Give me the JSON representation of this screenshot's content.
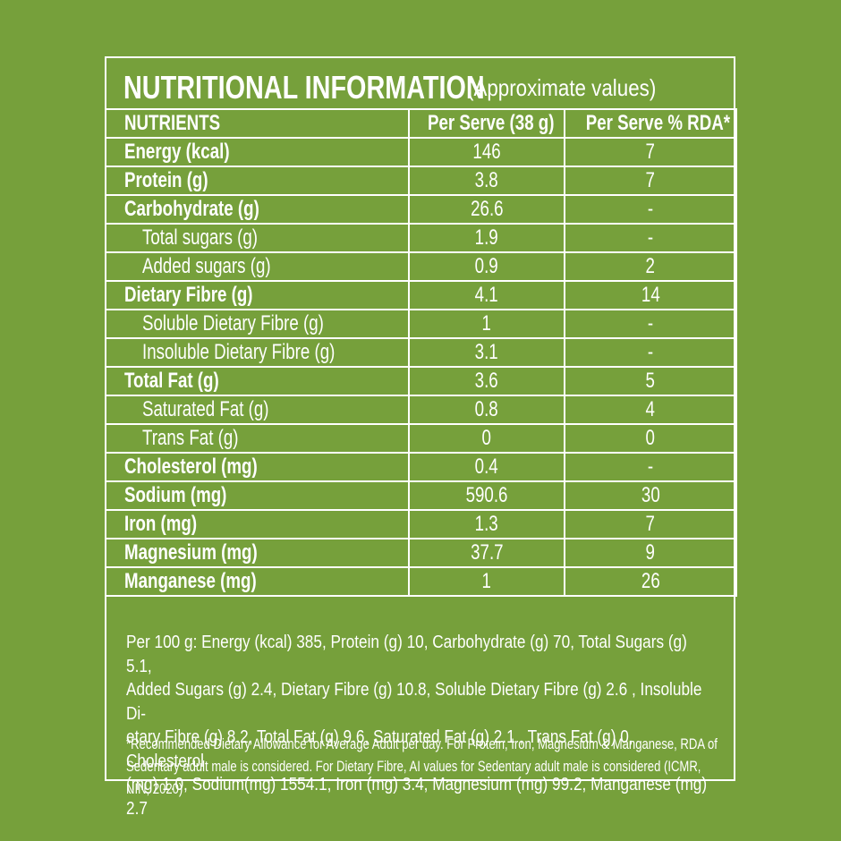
{
  "label": {
    "title": "NUTRITIONAL INFORMATION",
    "subtitle": "(Approximate values)",
    "columns": [
      "NUTRIENTS",
      "Per Serve (38 g)",
      "Per Serve % RDA*"
    ],
    "rows": [
      {
        "name": "Energy (kcal)",
        "per_serve": "146",
        "rda": "7"
      },
      {
        "name": "Protein (g)",
        "per_serve": "3.8",
        "rda": "7"
      },
      {
        "name": "Carbohydrate (g)",
        "per_serve": "26.6",
        "rda": "-"
      },
      {
        "name": "Total sugars (g)",
        "per_serve": "1.9",
        "rda": "-"
      },
      {
        "name": "Added sugars (g)",
        "per_serve": "0.9",
        "rda": "2"
      },
      {
        "name": "Dietary Fibre (g)",
        "per_serve": "4.1",
        "rda": "14"
      },
      {
        "name": "Soluble Dietary Fibre (g)",
        "per_serve": "1",
        "rda": "-"
      },
      {
        "name": "Insoluble Dietary Fibre (g)",
        "per_serve": "3.1",
        "rda": "-"
      },
      {
        "name": "Total Fat (g)",
        "per_serve": "3.6",
        "rda": "5"
      },
      {
        "name": "Saturated Fat (g)",
        "per_serve": "0.8",
        "rda": "4"
      },
      {
        "name": "Trans Fat (g)",
        "per_serve": "0",
        "rda": "0"
      },
      {
        "name": "Cholesterol (mg)",
        "per_serve": "0.4",
        "rda": "-"
      },
      {
        "name": "Sodium (mg)",
        "per_serve": "590.6",
        "rda": "30"
      },
      {
        "name": "Iron (mg)",
        "per_serve": "1.3",
        "rda": "7"
      },
      {
        "name": "Magnesium (mg)",
        "per_serve": "37.7",
        "rda": "9"
      },
      {
        "name": "Manganese (mg)",
        "per_serve": "1",
        "rda": "26"
      }
    ],
    "per_100g": [
      "Per 100 g: Energy (kcal) 385, Protein (g) 10, Carbohydrate (g) 70, Total Sugars (g) 5.1,",
      "Added Sugars (g) 2.4, Dietary Fibre (g) 10.8, Soluble Dietary Fibre (g) 2.6 , Insoluble Di-",
      "etary Fibre (g) 8.2, Total Fat (g) 9.6, Saturated Fat (g) 2.1 , Trans Fat (g) 0, Cholesterol",
      "(mg) 1.0, Sodium(mg) 1554.1, Iron (mg) 3.4, Magnesium (mg) 99.2, Manganese (mg) 2.7"
    ],
    "rda_note": [
      "*Recommended Dietary Allowance for Average Adult per day. For Protein, Iron, Magnesium & Manganese, RDA of",
      "Sedentary adult male is considered. For Dietary Fibre, AI values for Sedentary adult male is considered (ICMR, NIN, 2020)"
    ]
  },
  "colors": {
    "background": "#76a03b",
    "foreground": "#ffffff"
  }
}
